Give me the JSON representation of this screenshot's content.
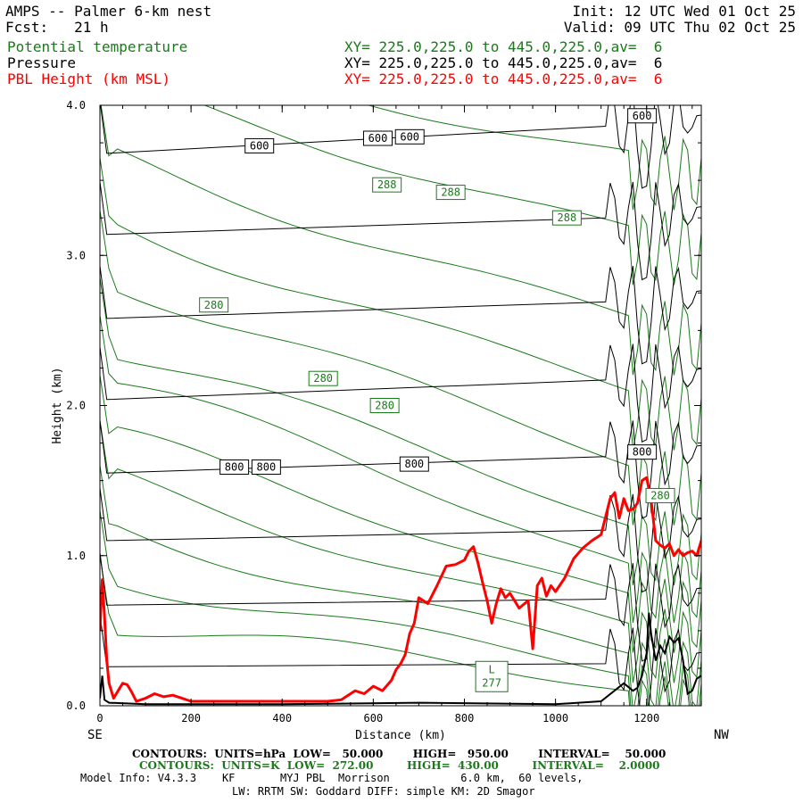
{
  "header": {
    "title": "AMPS -- Palmer 6-km nest",
    "init": "Init: 12 UTC Wed 01 Oct 25",
    "fcst": "Fcst:   21 h",
    "valid": "Valid: 09 UTC Thu 02 Oct 25",
    "fields": [
      {
        "name": "Potential temperature",
        "xy": "XY= 225.0,225.0 to 445.0,225.0,av=  6",
        "color": "#1a7a1a"
      },
      {
        "name": "Pressure",
        "xy": "XY= 225.0,225.0 to 445.0,225.0,av=  6",
        "color": "#000000"
      },
      {
        "name": "PBL Height (km MSL)",
        "xy": "XY= 225.0,225.0 to 445.0,225.0,av=  6",
        "color": "#ff0000"
      }
    ]
  },
  "chart_data": {
    "type": "line",
    "xlabel": "Distance (km)",
    "ylabel": "Height (km)",
    "xlim": [
      0,
      1320
    ],
    "ylim": [
      0,
      4.0
    ],
    "x_ticks": [
      "0",
      "200",
      "400",
      "600",
      "800",
      "1000",
      "1200"
    ],
    "y_ticks": [
      "0.0",
      "1.0",
      "2.0",
      "3.0",
      "4.0"
    ],
    "left_end_label": "SE",
    "right_end_label": "NW",
    "pressure_contours": [
      {
        "level": 950,
        "y0": 0.26,
        "y1": 0.3
      },
      {
        "level": 900,
        "y0": 0.67,
        "y1": 0.73
      },
      {
        "level": 850,
        "y0": 1.1,
        "y1": 1.19
      },
      {
        "level": 800,
        "y0": 1.55,
        "y1": 1.68
      },
      {
        "level": 750,
        "y0": 2.04,
        "y1": 2.19
      },
      {
        "level": 700,
        "y0": 2.58,
        "y1": 2.71
      },
      {
        "level": 650,
        "y0": 3.14,
        "y1": 3.27
      },
      {
        "level": 600,
        "y0": 3.68,
        "y1": 3.88
      }
    ],
    "pressure_labels": [
      {
        "text": "600",
        "x": 350,
        "y": 3.73
      },
      {
        "text": "600",
        "x": 610,
        "y": 3.78
      },
      {
        "text": "600",
        "x": 680,
        "y": 3.79
      },
      {
        "text": "600",
        "x": 1190,
        "y": 3.93
      },
      {
        "text": "800",
        "x": 295,
        "y": 1.59
      },
      {
        "text": "800",
        "x": 365,
        "y": 1.59
      },
      {
        "text": "800",
        "x": 690,
        "y": 1.61
      },
      {
        "text": "800",
        "x": 1190,
        "y": 1.69
      }
    ],
    "theta_labels": [
      {
        "text": "288",
        "x": 630,
        "y": 3.47
      },
      {
        "text": "288",
        "x": 770,
        "y": 3.42
      },
      {
        "text": "288",
        "x": 1025,
        "y": 3.25
      },
      {
        "text": "280",
        "x": 250,
        "y": 2.67
      },
      {
        "text": "280",
        "x": 490,
        "y": 2.18
      },
      {
        "text": "280",
        "x": 625,
        "y": 2.0
      },
      {
        "text": "280",
        "x": 1230,
        "y": 1.4
      },
      {
        "text": "277",
        "x": 860,
        "y": 0.17
      }
    ],
    "low_marker": {
      "text": "L",
      "x": 860,
      "y": 0.26
    },
    "pbl_height": {
      "name": "PBL Height (km MSL)",
      "color": "#ff0000",
      "x": [
        0,
        5,
        10,
        15,
        20,
        30,
        40,
        50,
        60,
        70,
        80,
        90,
        100,
        120,
        140,
        160,
        180,
        200,
        300,
        400,
        500,
        530,
        560,
        580,
        600,
        620,
        640,
        650,
        660,
        670,
        680,
        690,
        700,
        710,
        720,
        740,
        760,
        780,
        800,
        810,
        820,
        830,
        840,
        850,
        860,
        870,
        880,
        890,
        900,
        910,
        920,
        940,
        950,
        960,
        970,
        980,
        990,
        1000,
        1020,
        1040,
        1060,
        1080,
        1100,
        1120,
        1130,
        1140,
        1150,
        1160,
        1170,
        1180,
        1190,
        1200,
        1210,
        1220,
        1230,
        1240,
        1250,
        1260,
        1270,
        1280,
        1290,
        1300,
        1310,
        1320
      ],
      "y": [
        0.5,
        0.84,
        0.6,
        0.3,
        0.15,
        0.05,
        0.1,
        0.15,
        0.14,
        0.09,
        0.03,
        0.04,
        0.05,
        0.08,
        0.06,
        0.07,
        0.05,
        0.03,
        0.03,
        0.03,
        0.03,
        0.04,
        0.1,
        0.08,
        0.13,
        0.1,
        0.17,
        0.24,
        0.28,
        0.34,
        0.48,
        0.55,
        0.72,
        0.7,
        0.68,
        0.8,
        0.93,
        0.94,
        0.97,
        1.03,
        1.06,
        0.95,
        0.82,
        0.7,
        0.55,
        0.68,
        0.78,
        0.72,
        0.75,
        0.7,
        0.65,
        0.7,
        0.38,
        0.8,
        0.85,
        0.73,
        0.8,
        0.76,
        0.85,
        0.98,
        1.05,
        1.1,
        1.14,
        1.38,
        1.42,
        1.25,
        1.38,
        1.3,
        1.31,
        1.35,
        1.5,
        1.52,
        1.37,
        1.1,
        1.07,
        1.05,
        1.08,
        1.0,
        1.04,
        1.0,
        1.02,
        1.03,
        1.0,
        1.1
      ]
    },
    "terrain": {
      "x": [
        0,
        5,
        10,
        20,
        100,
        400,
        700,
        1000,
        1100,
        1150,
        1170,
        1180,
        1190,
        1200,
        1205,
        1210,
        1220,
        1230,
        1240,
        1250,
        1260,
        1270,
        1280,
        1290,
        1300,
        1310,
        1320
      ],
      "y": [
        0.05,
        0.2,
        0.04,
        0.02,
        0.01,
        0.01,
        0.02,
        0.01,
        0.03,
        0.15,
        0.1,
        0.12,
        0.2,
        0.35,
        0.62,
        0.48,
        0.3,
        0.4,
        0.35,
        0.46,
        0.42,
        0.45,
        0.3,
        0.08,
        0.1,
        0.18,
        0.2
      ]
    }
  },
  "footer": {
    "line1": "CONTOURS:  UNITS=hPa  LOW=   50.000        HIGH=   950.00        INTERVAL=    50.000",
    "line2": "CONTOURS:  UNITS=K  LOW=  272.00         HIGH=  430.00         INTERVAL=    2.0000",
    "line3": "Model Info: V4.3.3    KF       MYJ PBL  Morrison           6.0 km,  60 levels,",
    "line4": "LW: RRTM SW: Goddard DIFF: simple KM: 2D Smagor"
  }
}
